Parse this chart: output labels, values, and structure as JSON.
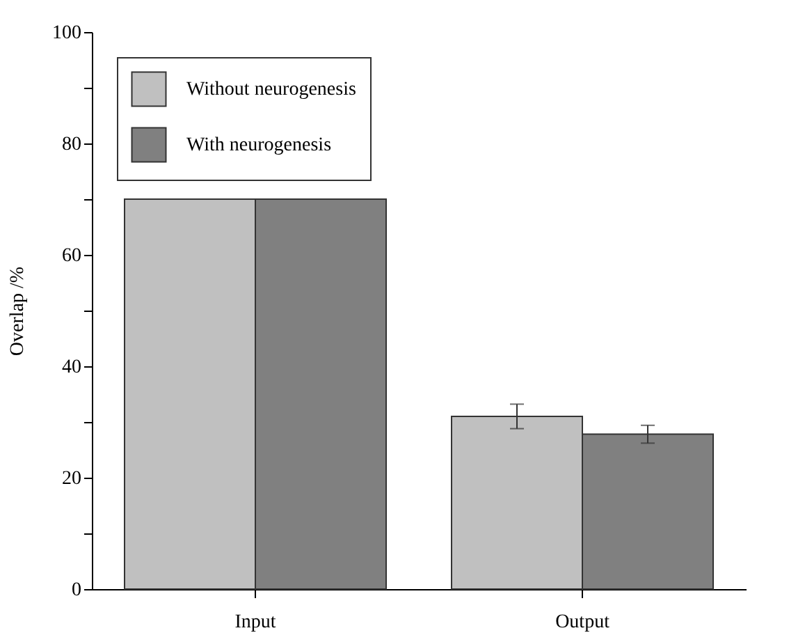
{
  "chart_data": {
    "type": "bar",
    "ylabel": "Overlap /%",
    "categories": [
      "Input",
      "Output"
    ],
    "series": [
      {
        "name": "Without neurogenesis",
        "color": "#c0c0c0",
        "values": [
          70,
          31
        ],
        "errors": [
          null,
          2.2
        ]
      },
      {
        "name": "With neurogenesis",
        "color": "#808080",
        "values": [
          70,
          27.8
        ],
        "errors": [
          null,
          1.6
        ]
      }
    ],
    "ylim": [
      0,
      100
    ],
    "yticks": [
      0,
      {
        "value": 10,
        "label": null
      },
      20,
      {
        "value": 30,
        "label": null
      },
      40,
      {
        "value": 50,
        "label": null
      },
      60,
      {
        "value": 70,
        "label": null
      },
      80,
      {
        "value": 90,
        "label": null
      },
      100
    ],
    "grid": false,
    "legend": "top left"
  }
}
